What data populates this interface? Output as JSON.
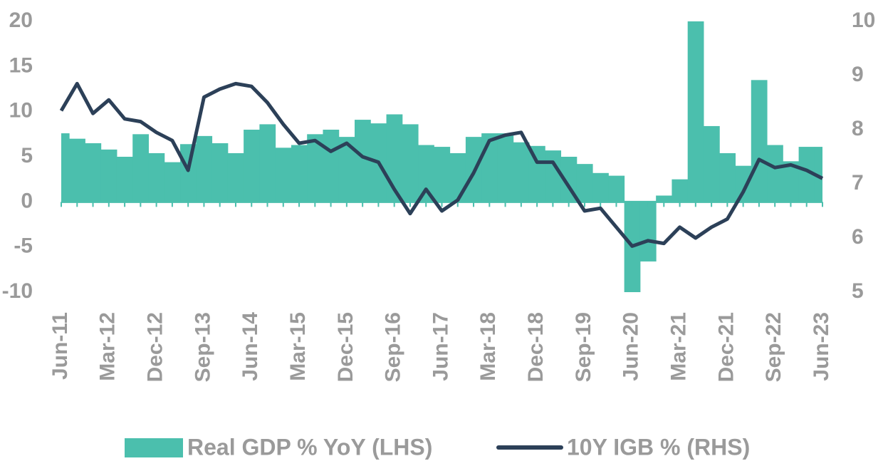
{
  "chart_data": {
    "type": "bar-line",
    "categories": [
      "Jun-11",
      null,
      null,
      "Mar-12",
      null,
      null,
      "Dec-12",
      null,
      null,
      "Sep-13",
      null,
      null,
      "Jun-14",
      null,
      null,
      "Mar-15",
      null,
      null,
      "Dec-15",
      null,
      null,
      "Sep-16",
      null,
      null,
      "Jun-17",
      null,
      null,
      "Mar-18",
      null,
      null,
      "Dec-18",
      null,
      null,
      "Sep-19",
      null,
      null,
      "Jun-20",
      null,
      null,
      "Mar-21",
      null,
      null,
      "Dec-21",
      null,
      null,
      "Sep-22",
      null,
      null,
      "Jun-23"
    ],
    "series": [
      {
        "name": "Real GDP % YoY (LHS)",
        "color": "#4bbfad",
        "type": "bar",
        "values": [
          7.6,
          7.0,
          6.5,
          5.8,
          5.0,
          7.5,
          5.4,
          4.4,
          6.4,
          7.3,
          6.5,
          5.4,
          8.0,
          8.6,
          6.0,
          6.3,
          7.5,
          8.0,
          7.2,
          9.1,
          8.7,
          9.7,
          8.6,
          6.3,
          6.1,
          5.4,
          7.2,
          7.6,
          7.6,
          6.6,
          6.2,
          5.7,
          5.0,
          4.2,
          3.2,
          2.9,
          -10,
          -6.6,
          0.7,
          2.5,
          20,
          8.4,
          5.4,
          4.0,
          13.5,
          6.3,
          4.5,
          6.1,
          6.1
        ]
      },
      {
        "name": "10Y IGB % (RHS)",
        "color": "#2c4058",
        "type": "line",
        "axis": "y2",
        "values": [
          8.35,
          8.85,
          8.3,
          8.55,
          8.2,
          8.15,
          7.95,
          7.8,
          7.25,
          8.6,
          8.75,
          8.85,
          8.8,
          8.5,
          8.1,
          7.75,
          7.8,
          7.6,
          7.75,
          7.5,
          7.4,
          6.9,
          6.45,
          6.9,
          6.5,
          6.7,
          7.2,
          7.8,
          7.9,
          7.95,
          7.4,
          7.4,
          6.95,
          6.5,
          6.55,
          6.2,
          5.85,
          5.95,
          5.9,
          6.2,
          6.0,
          6.2,
          6.35,
          6.85,
          7.45,
          7.3,
          7.35,
          7.25,
          7.1
        ]
      }
    ],
    "ylim": [
      -10,
      20
    ],
    "yticks": [
      -10,
      -5,
      0,
      5,
      10,
      15,
      20
    ],
    "y2lim": [
      5,
      10
    ],
    "y2ticks": [
      5,
      6,
      7,
      8,
      9,
      10
    ],
    "legend": "bottom"
  }
}
